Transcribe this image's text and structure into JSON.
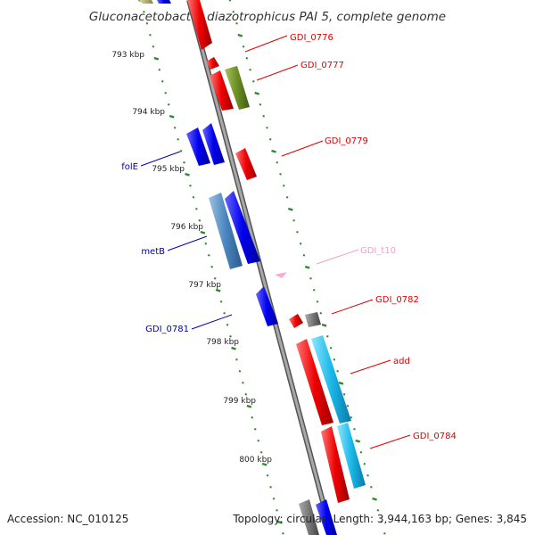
{
  "title": "Gluconacetobacter diazotrophicus PAI 5, complete genome",
  "footer": {
    "accession": "Accession: NC_010125",
    "summary": "Topology: circular; Length: 3,944,163 bp; Genes: 3,845"
  },
  "ticks": [
    {
      "label": "793 kbp"
    },
    {
      "label": "794 kbp"
    },
    {
      "label": "795 kbp"
    },
    {
      "label": "796 kbp"
    },
    {
      "label": "797 kbp"
    },
    {
      "label": "798 kbp"
    },
    {
      "label": "799 kbp"
    },
    {
      "label": "800 kbp"
    }
  ],
  "gene_labels": [
    {
      "name": "GDI_0776",
      "color": "#dd0000"
    },
    {
      "name": "GDI_0777",
      "color": "#dd0000"
    },
    {
      "name": "GDI_0779",
      "color": "#dd0000"
    },
    {
      "name": "folE",
      "color": "#0000aa"
    },
    {
      "name": "metB",
      "color": "#0000aa"
    },
    {
      "name": "GDI_t10",
      "color": "#f0a0c8"
    },
    {
      "name": "GDI_0782",
      "color": "#dd0000"
    },
    {
      "name": "GDI_0781",
      "color": "#0000aa"
    },
    {
      "name": "add",
      "color": "#dd0000"
    },
    {
      "name": "GDI_0784",
      "color": "#dd0000"
    }
  ],
  "colors": {
    "backbone": "#8c8c8c",
    "tick_dots": "#2a8a2a",
    "cds_forward": "#ee0000",
    "cds_reverse": "#0000ee",
    "olive": "#6b8e23",
    "steelblue": "#4a86c0",
    "cyan": "#1ab8e8",
    "gray_feature": "#777777",
    "trna": "#ffaad0"
  }
}
